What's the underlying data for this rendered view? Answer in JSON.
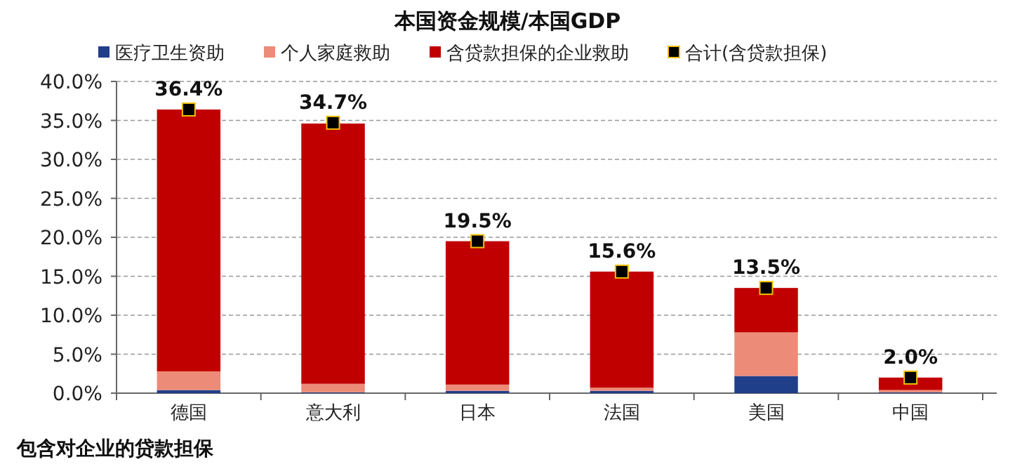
{
  "chart_data": {
    "type": "bar",
    "title": "本国资金规模/本国GDP",
    "categories": [
      "德国",
      "意大利",
      "日本",
      "法国",
      "美国",
      "中国"
    ],
    "stacked": true,
    "series": [
      {
        "name": "医疗卫生资助",
        "color": "#203f8a",
        "values": [
          0.4,
          0.1,
          0.3,
          0.3,
          2.2,
          0.1
        ]
      },
      {
        "name": "个人家庭救助",
        "color": "#ec8b78",
        "values": [
          2.4,
          1.1,
          0.8,
          0.4,
          5.6,
          0.3
        ]
      },
      {
        "name": "含贷款担保的企业救助",
        "color": "#c00000",
        "values": [
          33.6,
          33.4,
          18.4,
          14.9,
          5.7,
          1.6
        ]
      },
      {
        "name": "合计(含贷款担保)",
        "type": "scatter",
        "marker": "square",
        "color": "#000000",
        "x": [
          "德国",
          "意大利",
          "日本",
          "法国",
          "美国",
          "中国"
        ],
        "values": [
          36.4,
          34.7,
          19.5,
          15.6,
          13.5,
          2.0
        ],
        "value_labels": [
          "36.4%",
          "34.7%",
          "19.5%",
          "15.6%",
          "13.5%",
          "2.0%"
        ]
      }
    ],
    "ylim": [
      0,
      40
    ],
    "yticks": [
      {
        "value": 0,
        "label": "0.0%"
      },
      {
        "value": 5,
        "label": "5.0%"
      },
      {
        "value": 10,
        "label": "10.0%"
      },
      {
        "value": 15,
        "label": "15.0%"
      },
      {
        "value": 20,
        "label": "20.0%"
      },
      {
        "value": 25,
        "label": "25.0%"
      },
      {
        "value": 30,
        "label": "30.0%"
      },
      {
        "value": 35,
        "label": "35.0%"
      },
      {
        "value": 40,
        "label": "40.0%"
      }
    ],
    "grid": "y",
    "legend": "top",
    "annotations": [
      "包含对企业的贷款担保"
    ]
  }
}
